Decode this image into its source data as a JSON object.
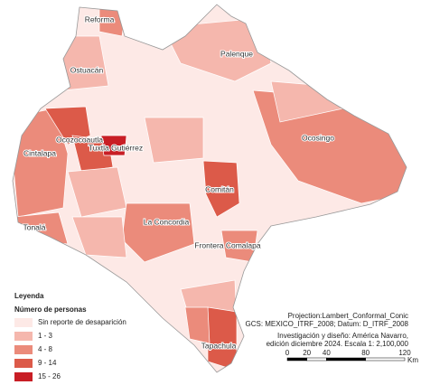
{
  "labels": [
    "Reforma",
    "Palenque",
    "Ostuacán",
    "Ocozocoautla",
    "Tuxtla Gutiérrez",
    "Ocosingo",
    "Cintalapa",
    "Comitán",
    "La Concordia",
    "Tonalá",
    "Frontera Comalapa",
    "Tapachula"
  ],
  "legend": {
    "title": "Leyenda",
    "subtitle": "Número de personas",
    "classes": [
      {
        "label": "Sin reporte de desaparición",
        "color": "#fde9e6"
      },
      {
        "label": "1 - 3",
        "color": "#f5b7ad"
      },
      {
        "label": "4 - 8",
        "color": "#eb8b7b"
      },
      {
        "label": "9 - 14",
        "color": "#dc5a49"
      },
      {
        "label": "15 - 26",
        "color": "#c81e25"
      }
    ]
  },
  "credits": [
    "Projection:Lambert_Conformal_Conic",
    "GCS: MEXICO_ITRF_2008; Datum: D_ITRF_2008",
    "Investigación y diseño: América Navarro,",
    "edición diciembre 2024. Escala 1: 2,100,000"
  ],
  "scale": {
    "ticks": [
      0,
      20,
      40,
      80,
      120
    ],
    "unit": "Km"
  }
}
